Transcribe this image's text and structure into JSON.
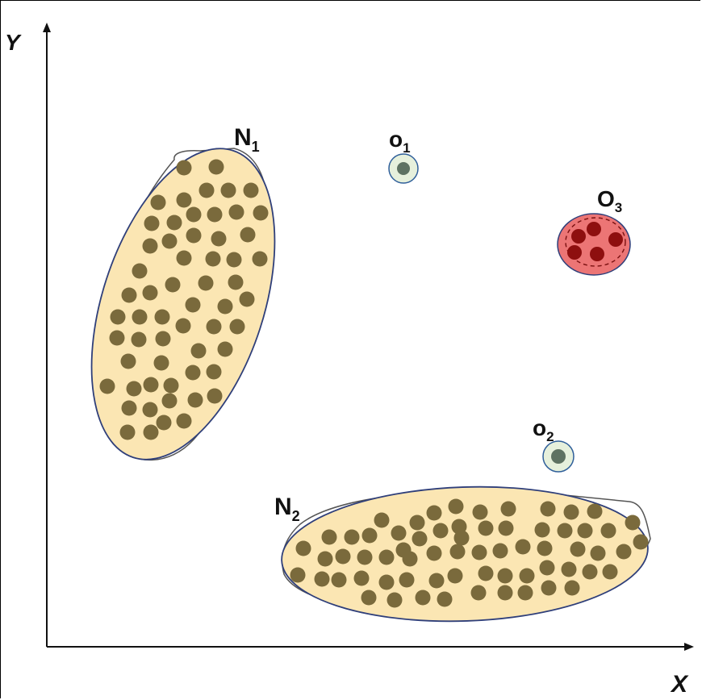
{
  "axes": {
    "x_label": "X",
    "y_label": "Y"
  },
  "colors": {
    "cluster_fill": "#fbe6b3",
    "cluster_stroke": "#2f3f7a",
    "point": "#7a6a3c",
    "outlier_fill": "#e6f0dc",
    "outlier_stroke": "#2f5f9a",
    "outlier_point": "#5e7262",
    "o3_fill": "#ec7575",
    "o3_point": "#8e0f0f",
    "axis": "#111111"
  },
  "labels": {
    "n1": {
      "main": "N",
      "sub": "1"
    },
    "n2": {
      "main": "N",
      "sub": "2"
    },
    "o1": {
      "main": "o",
      "sub": "1"
    },
    "o2": {
      "main": "o",
      "sub": "2"
    },
    "o3": {
      "main": "O",
      "sub": "3"
    }
  }
}
